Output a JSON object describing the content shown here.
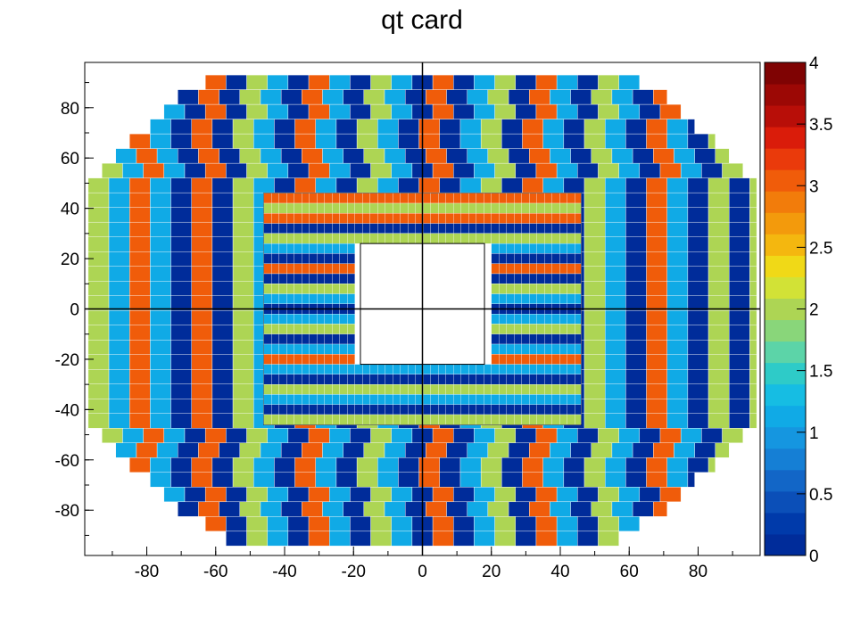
{
  "chart_data": {
    "type": "heatmap",
    "title": "qt card",
    "xlabel": "",
    "ylabel": "",
    "xlim": [
      -98,
      98
    ],
    "ylim": [
      -98,
      98
    ],
    "x_ticks": [
      "-80",
      "-60",
      "-40",
      "-20",
      "0",
      "20",
      "40",
      "60",
      "80"
    ],
    "y_ticks": [
      "-80",
      "-60",
      "-40",
      "-20",
      "0",
      "20",
      "40",
      "60",
      "80"
    ],
    "z_range": [
      0,
      4
    ],
    "z_ticks": [
      "0",
      "0.5",
      "1",
      "1.5",
      "2",
      "2.5",
      "3",
      "3.5",
      "4"
    ],
    "palette": [
      "#002c9a",
      "#003aaa",
      "#0b4fb8",
      "#1266c7",
      "#157fd5",
      "#1596e0",
      "#10aae6",
      "#16bde3",
      "#2ecbc8",
      "#5cd4a8",
      "#89d67a",
      "#add554",
      "#d2e236",
      "#f0d917",
      "#f4b70f",
      "#f39a0c",
      "#f27c0b",
      "#f05c0a",
      "#ea3a0b",
      "#da1c0a",
      "#b80e08",
      "#9c0805",
      "#7f0303"
    ],
    "outer_row_edges": [
      [
        -63,
        63
      ],
      [
        -71,
        71
      ],
      [
        -75,
        75
      ],
      [
        -79,
        79
      ],
      [
        -85,
        85
      ],
      [
        -89,
        89
      ],
      [
        -93,
        93
      ],
      [
        -97,
        97
      ],
      [
        -97,
        97
      ],
      [
        -97,
        97
      ],
      [
        -97,
        97
      ],
      [
        -97,
        97
      ],
      [
        -97,
        97
      ],
      [
        -97,
        97
      ],
      [
        -97,
        97
      ],
      [
        -97,
        97
      ],
      [
        -97,
        97
      ],
      [
        -97,
        97
      ],
      [
        -97,
        97
      ],
      [
        -97,
        97
      ],
      [
        -97,
        97
      ],
      [
        -97,
        97
      ],
      [
        -97,
        97
      ],
      [
        -97,
        97
      ],
      [
        -93,
        93
      ],
      [
        -89,
        89
      ],
      [
        -85,
        85
      ],
      [
        -79,
        79
      ],
      [
        -75,
        75
      ],
      [
        -71,
        71
      ],
      [
        -63,
        63
      ],
      [
        -57,
        57
      ]
    ],
    "x_column_values": [
      2,
      1,
      3,
      1,
      0,
      3,
      0,
      2,
      1,
      0,
      3,
      1,
      0,
      2,
      1,
      0,
      3,
      0,
      1,
      2,
      0,
      3,
      1,
      0,
      2,
      1,
      0,
      3,
      1,
      0,
      2,
      0
    ],
    "inner_region": {
      "x": [
        -46,
        46
      ],
      "y": [
        -46,
        46
      ]
    },
    "inner_hole": {
      "x": [
        -18,
        18
      ],
      "y": [
        -22,
        26
      ]
    },
    "inner_row_values": [
      3,
      2,
      3,
      0,
      2,
      1,
      0,
      3,
      0,
      2,
      1,
      0,
      1,
      2,
      0,
      1,
      3,
      1,
      0,
      2,
      1,
      0,
      2
    ],
    "center_lines": {
      "vertical_x": 0,
      "horizontal_y": 0
    }
  }
}
